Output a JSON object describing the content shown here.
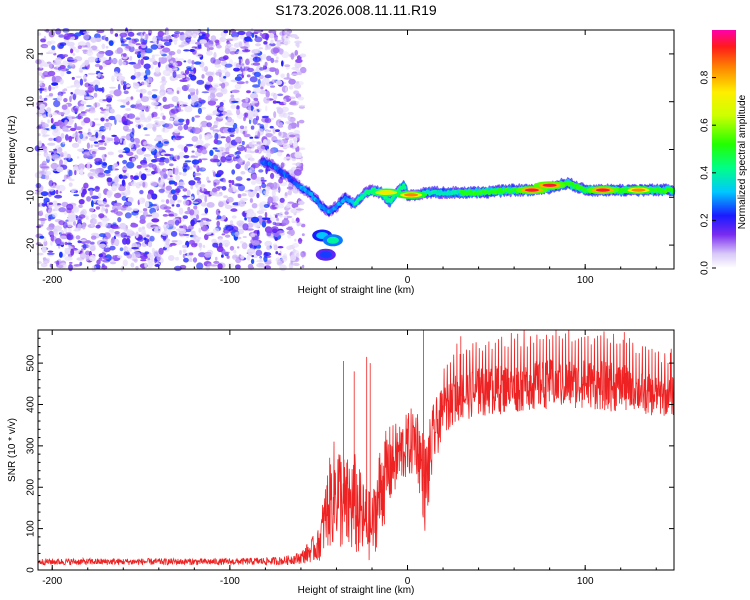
{
  "title": "S173.2026.008.11.11.R19",
  "chart_data": [
    {
      "type": "heatmap",
      "name": "spectrogram",
      "xlabel": "Height of straight line (km)",
      "ylabel": "Frequency (Hz)",
      "xlim": [
        -208,
        150
      ],
      "ylim": [
        -25,
        25
      ],
      "xticks": [
        -200,
        -100,
        0,
        100
      ],
      "xtick_labels": [
        "-200",
        "-100",
        "0",
        "100"
      ],
      "yticks": [
        -20,
        -10,
        0,
        10,
        20
      ],
      "ytick_labels": [
        "-20",
        "-10",
        "0",
        "10",
        "20"
      ],
      "noise_region_xmax": -62,
      "signal_track": {
        "x": [
          -82,
          -75,
          -68,
          -60,
          -55,
          -48,
          -44,
          -40,
          -35,
          -30,
          -25,
          -20,
          -15,
          -10,
          -6,
          -2,
          0,
          5,
          10,
          20,
          40,
          60,
          70,
          80,
          90,
          100,
          120,
          150
        ],
        "freq": [
          -2.5,
          -3.5,
          -5.5,
          -8,
          -9,
          -12,
          -13,
          -12,
          -10,
          -11.5,
          -9.5,
          -8.5,
          -9,
          -11,
          -9,
          -7.5,
          -9.5,
          -9.5,
          -9,
          -9,
          -9,
          -8.5,
          -8.5,
          -8,
          -7,
          -8.5,
          -8.5,
          -8.5
        ]
      },
      "blobs": [
        {
          "x": -48,
          "freq": -18,
          "amp": 0.4
        },
        {
          "x": -42,
          "freq": -19,
          "amp": 0.5
        },
        {
          "x": -46,
          "freq": -22,
          "amp": 0.3
        },
        {
          "x": 70,
          "freq": -8.5,
          "amp": 1.0
        },
        {
          "x": 80,
          "freq": -7.5,
          "amp": 1.0
        },
        {
          "x": 110,
          "freq": -8.5,
          "amp": 1.0
        },
        {
          "x": 130,
          "freq": -8.5,
          "amp": 0.9
        },
        {
          "x": 2,
          "freq": -9.5,
          "amp": 0.9
        },
        {
          "x": -12,
          "freq": -9,
          "amp": 0.8
        }
      ],
      "colorbar": {
        "label": "Normalized spectral amplitude",
        "range": [
          0,
          1
        ],
        "ticks": [
          0.0,
          0.2,
          0.4,
          0.6,
          0.8
        ],
        "tick_labels": [
          "0.0",
          "0.2",
          "0.4",
          "0.6",
          "0.8"
        ]
      }
    },
    {
      "type": "line",
      "name": "snr",
      "xlabel": "Height of straight line (km)",
      "ylabel": "SNR (10 * v/v)",
      "xlim": [
        -208,
        150
      ],
      "ylim": [
        0,
        580
      ],
      "xticks": [
        -200,
        -100,
        0,
        100
      ],
      "xtick_labels": [
        "-200",
        "-100",
        "0",
        "100"
      ],
      "yticks": [
        0,
        100,
        200,
        300,
        400,
        500
      ],
      "ytick_labels": [
        "0",
        "100",
        "200",
        "300",
        "400",
        "500"
      ],
      "color": "#ee2222",
      "envelope": {
        "x": [
          -208,
          -150,
          -100,
          -70,
          -60,
          -50,
          -45,
          -40,
          -35,
          -30,
          -25,
          -20,
          -15,
          -10,
          -5,
          0,
          5,
          8,
          10,
          15,
          20,
          25,
          30,
          40,
          60,
          80,
          100,
          120,
          130,
          140,
          150
        ],
        "mid": [
          20,
          20,
          20,
          22,
          30,
          60,
          150,
          200,
          150,
          160,
          120,
          100,
          200,
          250,
          280,
          300,
          320,
          250,
          200,
          330,
          380,
          410,
          420,
          430,
          440,
          450,
          450,
          440,
          430,
          420,
          420
        ],
        "amp": [
          8,
          8,
          8,
          10,
          15,
          40,
          100,
          140,
          120,
          130,
          100,
          80,
          120,
          100,
          80,
          80,
          90,
          100,
          120,
          80,
          60,
          60,
          60,
          60,
          60,
          60,
          60,
          60,
          50,
          50,
          50
        ]
      },
      "spikes": [
        {
          "x": -36,
          "y": 505
        },
        {
          "x": -30,
          "y": 480
        },
        {
          "x": -23,
          "y": 515
        },
        {
          "x": -21,
          "y": 500
        },
        {
          "x": 9,
          "y": 580
        },
        {
          "x": 30,
          "y": 565
        },
        {
          "x": 122,
          "y": 575
        },
        {
          "x": 148,
          "y": 525
        }
      ]
    }
  ]
}
